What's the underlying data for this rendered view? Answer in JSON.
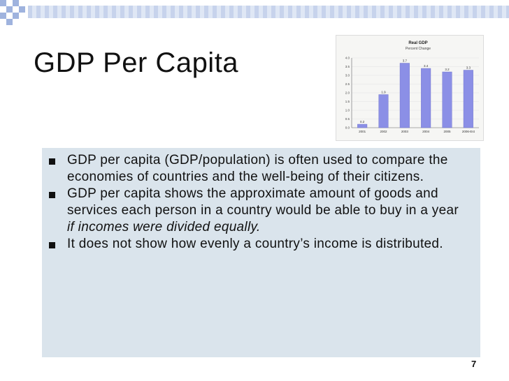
{
  "slide": {
    "title": "GDP Per Capita",
    "bullets": [
      {
        "text": "GDP per capita (GDP/population) is often used to compare the economies of countries and the well-being of their citizens."
      },
      {
        "text_before": "GDP per capita shows the approximate amount of goods and services each person in a country would be able to buy in a year ",
        "text_italic": "if incomes were divided equally."
      },
      {
        "text": "It does not show how evenly a country’s income is distributed."
      }
    ],
    "page_number": "7"
  },
  "chart_data": {
    "type": "bar",
    "title": "Real GDP",
    "subtitle": "Percent Change",
    "categories": [
      "2001",
      "2002",
      "2003",
      "2004",
      "2005",
      "2006-Est"
    ],
    "values": [
      0.2,
      1.9,
      3.7,
      3.4,
      3.2,
      3.3
    ],
    "data_labels": [
      "0.2",
      "1.9",
      "3.7",
      "3.4",
      "3.2",
      "3.3"
    ],
    "y_ticks": [
      "0.0",
      "0.5",
      "1.0",
      "1.5",
      "2.0",
      "2.5",
      "3.0",
      "3.5",
      "4.0"
    ],
    "ylim": [
      0,
      4.0
    ],
    "bar_color": "#8b8fe6"
  }
}
